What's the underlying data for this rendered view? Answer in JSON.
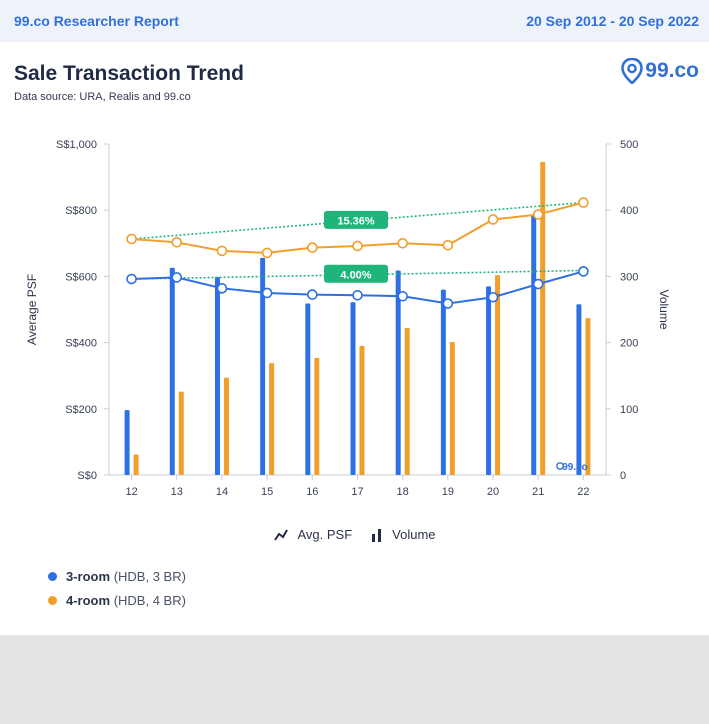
{
  "header": {
    "report_label": "99.co Researcher Report",
    "date_range": "20 Sep 2012 - 20 Sep 2022"
  },
  "title": "Sale Transaction Trend",
  "source": "Data source: URA, Realis and 99.co",
  "brand": "99.co",
  "legend": {
    "avg_psf": "Avg. PSF",
    "volume": "Volume"
  },
  "categories_legend": [
    {
      "name": "3-room",
      "detail": "(HDB, 3 BR)",
      "color": "#2f6fe4"
    },
    {
      "name": "4-room",
      "detail": "(HDB, 4 BR)",
      "color": "#f0a02a"
    }
  ],
  "chart_data": {
    "type": "bar+line",
    "x": [
      "12",
      "13",
      "14",
      "15",
      "16",
      "17",
      "18",
      "19",
      "20",
      "21",
      "22"
    ],
    "y_left_label": "Average PSF",
    "y_left_ticks": [
      "S$0",
      "S$200",
      "S$400",
      "S$600",
      "S$800",
      "S$1,000"
    ],
    "y_left_range": [
      0,
      1000
    ],
    "y_right_label": "Volume",
    "y_right_ticks": [
      "0",
      "100",
      "200",
      "300",
      "400",
      "500"
    ],
    "y_right_range": [
      0,
      500
    ],
    "volume_series": [
      {
        "name": "3-room",
        "color": "#2f6fe4",
        "values": [
          98,
          313,
          299,
          328,
          259,
          261,
          309,
          280,
          285,
          392,
          258
        ]
      },
      {
        "name": "4-room",
        "color": "#f0a02a",
        "values": [
          31,
          126,
          147,
          169,
          177,
          195,
          222,
          201,
          302,
          473,
          237
        ]
      }
    ],
    "psf_series": [
      {
        "name": "3-room",
        "color": "#2f6fe4",
        "values": [
          592,
          597,
          564,
          550,
          545,
          543,
          540,
          518,
          537,
          577,
          615
        ]
      },
      {
        "name": "4-room",
        "color": "#f0a02a",
        "values": [
          713,
          703,
          677,
          671,
          687,
          692,
          700,
          694,
          772,
          787,
          823
        ]
      }
    ],
    "trend_lines": [
      {
        "series": "3-room",
        "from": 592,
        "to": 618,
        "label": "4.00%",
        "color": "#1fb57a"
      },
      {
        "series": "4-room",
        "from": 713,
        "to": 823,
        "label": "15.36%",
        "color": "#1fb57a"
      }
    ],
    "watermark": "99.co",
    "grid": false
  }
}
